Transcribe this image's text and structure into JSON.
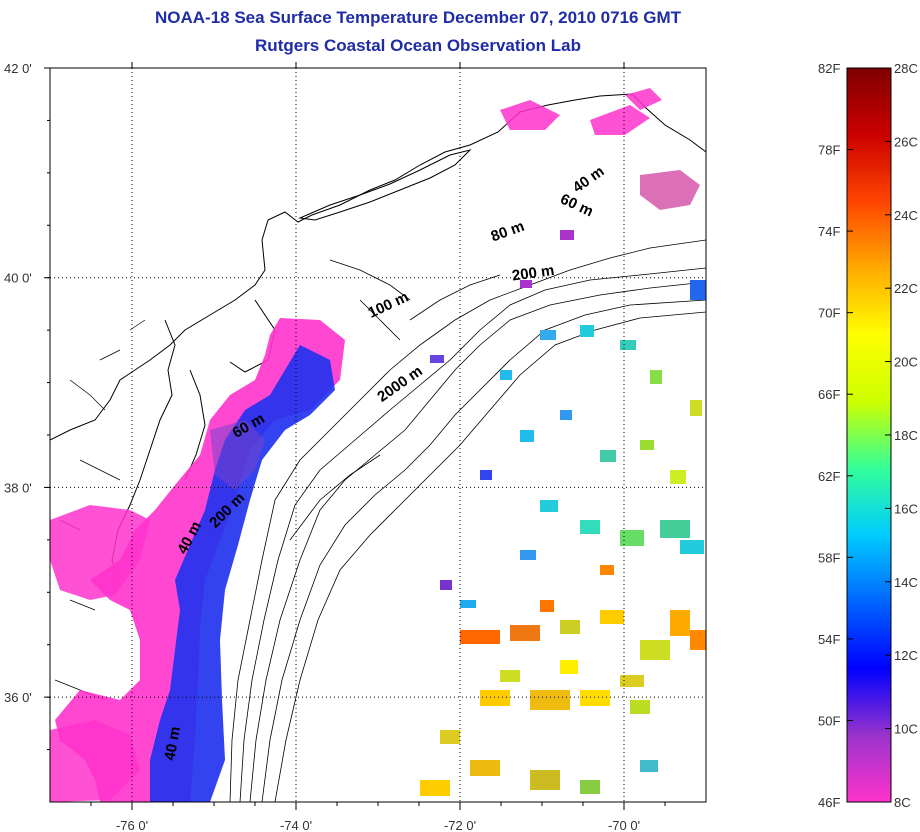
{
  "header": {
    "title": "NOAA-18 Sea Surface Temperature December 07, 2010 0716 GMT",
    "subtitle": "Rutgers Coastal Ocean Observation Lab"
  },
  "map": {
    "lon_range": [
      -77.0,
      -69.0
    ],
    "lat_range": [
      35.0,
      42.0
    ],
    "lon_ticks": [
      {
        "value": -76,
        "label": "-76 0'"
      },
      {
        "value": -74,
        "label": "-74 0'"
      },
      {
        "value": -72,
        "label": "-72 0'"
      },
      {
        "value": -70,
        "label": "-70 0'"
      }
    ],
    "lat_ticks": [
      {
        "value": 42,
        "label": "42 0'"
      },
      {
        "value": 40,
        "label": "40 0'"
      },
      {
        "value": 38,
        "label": "38 0'"
      },
      {
        "value": 36,
        "label": "36 0'"
      }
    ],
    "grid": "dotted",
    "contour_labels": [
      {
        "text": "40 m",
        "lon": -70.4,
        "lat": 40.9,
        "angle": -35
      },
      {
        "text": "60 m",
        "lon": -70.6,
        "lat": 40.65,
        "angle": 25
      },
      {
        "text": "80 m",
        "lon": -71.4,
        "lat": 40.4,
        "angle": -20
      },
      {
        "text": "200 m",
        "lon": -71.1,
        "lat": 40.0,
        "angle": -8
      },
      {
        "text": "100 m",
        "lon": -72.85,
        "lat": 39.7,
        "angle": -25
      },
      {
        "text": "2000 m",
        "lon": -72.7,
        "lat": 38.95,
        "angle": -35
      },
      {
        "text": "60 m",
        "lon": -74.55,
        "lat": 38.55,
        "angle": -30
      },
      {
        "text": "200 m",
        "lon": -74.8,
        "lat": 37.75,
        "angle": -45
      },
      {
        "text": "40 m",
        "lon": -75.25,
        "lat": 37.5,
        "angle": -62
      },
      {
        "text": "40 m",
        "lon": -75.45,
        "lat": 35.55,
        "angle": -80
      }
    ]
  },
  "colorbar": {
    "f_labels": [
      "82F",
      "78F",
      "74F",
      "70F",
      "66F",
      "62F",
      "58F",
      "54F",
      "50F",
      "46F"
    ],
    "c_labels": [
      "28C",
      "26C",
      "24C",
      "22C",
      "20C",
      "18C",
      "16C",
      "14C",
      "12C",
      "10C",
      "8C"
    ],
    "colors": [
      "#ff33cc",
      "#9933cc",
      "#0000ff",
      "#0066ff",
      "#00ccff",
      "#33ff99",
      "#ccff00",
      "#ffff00",
      "#ffaa00",
      "#ff4400",
      "#cc0000",
      "#800000"
    ]
  }
}
